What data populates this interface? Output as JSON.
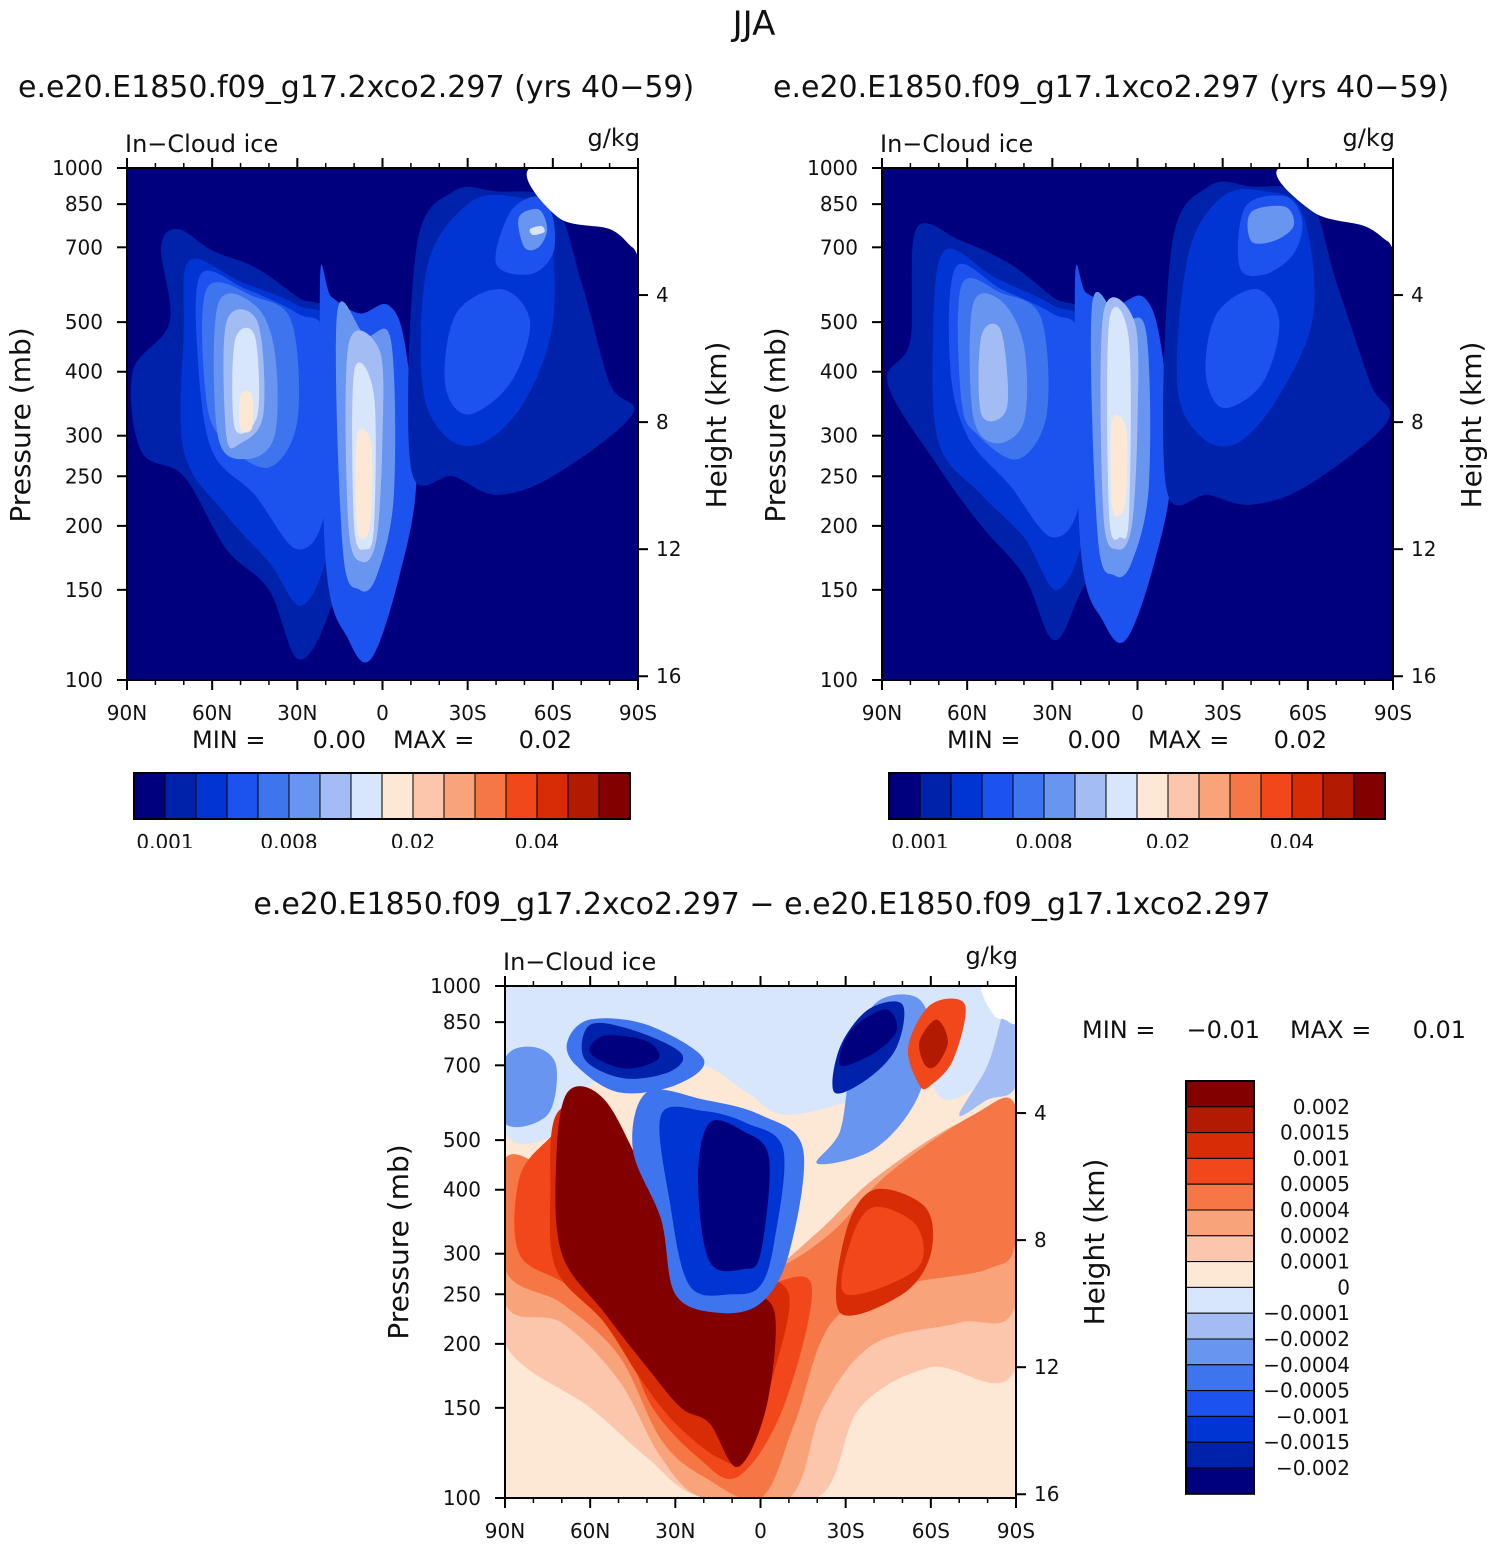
{
  "figure": {
    "season": "JJA",
    "case_a": "e.e20.E1850.f09_g17.2xco2.297 (yrs 40−59)",
    "case_b": "e.e20.E1850.f09_g17.1xco2.297 (yrs 40−59)",
    "diff_title": "e.e20.E1850.f09_g17.2xco2.297 − e.e20.E1850.f09_g17.1xco2.297"
  },
  "colors": {
    "abs_scale": [
      "#00007f",
      "#0022aa",
      "#0035d3",
      "#1c52ee",
      "#3f74ef",
      "#6895ef",
      "#a4bcf4",
      "#d7e6fb",
      "#fde8d6",
      "#fcc6ac",
      "#f9a37b",
      "#f57745",
      "#f2461b",
      "#d82c06",
      "#b21b02",
      "#830000"
    ],
    "diff_scale": [
      "#00007f",
      "#0022aa",
      "#0035d3",
      "#1c52ee",
      "#3f74ef",
      "#6895ef",
      "#a4bcf4",
      "#d7e6fb",
      "#fde8d6",
      "#fcc6ac",
      "#f9a37b",
      "#f57745",
      "#f2461b",
      "#d82c06",
      "#b21b02",
      "#830000"
    ]
  },
  "chart_data": [
    {
      "type": "heatmap",
      "panel": "top-left",
      "variable": "In−Cloud ice",
      "units": "g/kg",
      "ylabel": "Pressure (mb)",
      "y2label": "Height (km)",
      "x_ticks": [
        "90N",
        "60N",
        "30N",
        "0",
        "30S",
        "60S",
        "90S"
      ],
      "y_ticks": [
        "100",
        "150",
        "200",
        "250",
        "300",
        "400",
        "500",
        "700",
        "850",
        "1000"
      ],
      "y2_ticks": [
        "16",
        "12",
        "8",
        "4"
      ],
      "xlim": [
        90,
        -90
      ],
      "ylim": [
        1000,
        100
      ],
      "stats": {
        "min_label": "MIN =",
        "min": "0.00",
        "max_label": "MAX =",
        "max": "0.02"
      },
      "colorbar_labels": [
        "0.001",
        "0.008",
        "0.02",
        "0.04"
      ],
      "features": [
        {
          "lat": 50,
          "p": 320,
          "value": 0.02
        },
        {
          "lat": 8,
          "p": 220,
          "value": 0.02
        },
        {
          "lat": -55,
          "p": 760,
          "value": 0.012
        },
        {
          "lat": -30,
          "p": 350,
          "value": 0.006
        }
      ]
    },
    {
      "type": "heatmap",
      "panel": "top-right",
      "variable": "In−Cloud ice",
      "units": "g/kg",
      "ylabel": "Pressure (mb)",
      "y2label": "Height (km)",
      "x_ticks": [
        "90N",
        "60N",
        "30N",
        "0",
        "30S",
        "60S",
        "90S"
      ],
      "y_ticks": [
        "100",
        "150",
        "200",
        "250",
        "300",
        "400",
        "500",
        "700",
        "850",
        "1000"
      ],
      "y2_ticks": [
        "16",
        "12",
        "8",
        "4"
      ],
      "xlim": [
        90,
        -90
      ],
      "ylim": [
        1000,
        100
      ],
      "stats": {
        "min_label": "MIN =",
        "min": "0.00",
        "max_label": "MAX =",
        "max": "0.02"
      },
      "colorbar_labels": [
        "0.001",
        "0.008",
        "0.02",
        "0.04"
      ],
      "features": [
        {
          "lat": 55,
          "p": 350,
          "value": 0.01
        },
        {
          "lat": 8,
          "p": 250,
          "value": 0.02
        },
        {
          "lat": -45,
          "p": 780,
          "value": 0.009
        },
        {
          "lat": -30,
          "p": 380,
          "value": 0.005
        }
      ]
    },
    {
      "type": "heatmap",
      "panel": "bottom-difference",
      "variable": "In−Cloud ice",
      "units": "g/kg",
      "ylabel": "Pressure (mb)",
      "y2label": "Height (km)",
      "x_ticks": [
        "90N",
        "60N",
        "30N",
        "0",
        "30S",
        "60S",
        "90S"
      ],
      "y_ticks": [
        "100",
        "150",
        "200",
        "250",
        "300",
        "400",
        "500",
        "700",
        "850",
        "1000"
      ],
      "y2_ticks": [
        "16",
        "12",
        "8",
        "4"
      ],
      "xlim": [
        90,
        -90
      ],
      "ylim": [
        1000,
        100
      ],
      "stats": {
        "min_label": "MIN =",
        "min": "−0.01",
        "max_label": "MAX =",
        "max": "0.01"
      },
      "colorbar_labels": [
        "0.002",
        "0.0015",
        "0.001",
        "0.0005",
        "0.0004",
        "0.0002",
        "0.0001",
        "0",
        "−0.0001",
        "−0.0002",
        "−0.0004",
        "−0.0005",
        "−0.001",
        "−0.0015",
        "−0.002"
      ],
      "features": [
        {
          "lat": 30,
          "p": 250,
          "value": 0.002
        },
        {
          "lat": -45,
          "p": 280,
          "value": 0.001
        },
        {
          "lat": 20,
          "p": 450,
          "value": -0.002
        },
        {
          "lat": 55,
          "p": 760,
          "value": -0.002
        },
        {
          "lat": -35,
          "p": 780,
          "value": -0.002
        },
        {
          "lat": -60,
          "p": 760,
          "value": 0.002
        }
      ]
    }
  ]
}
